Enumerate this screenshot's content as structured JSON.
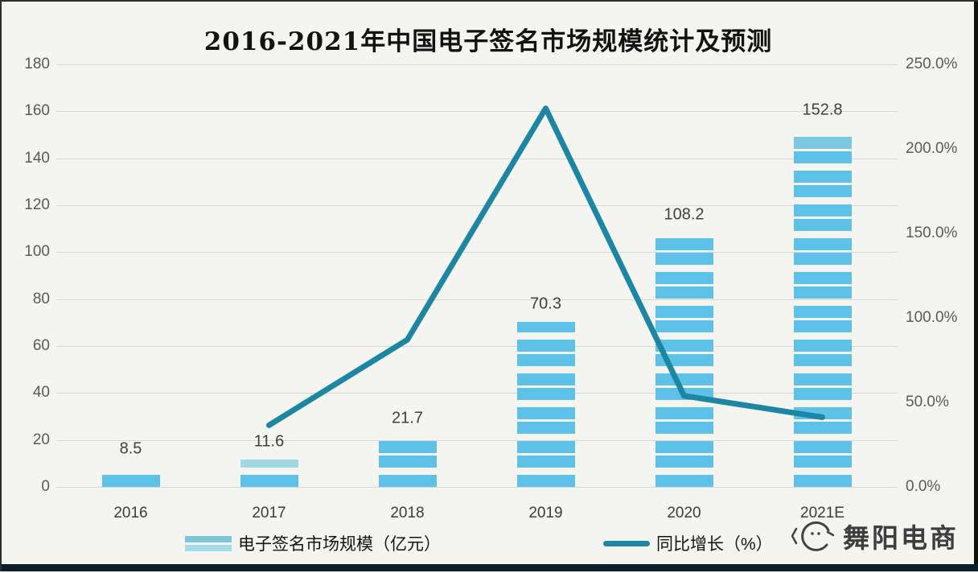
{
  "title": "2016-2021年中国电子签名市场规模统计及预测",
  "watermark": {
    "text": "舞阳电商"
  },
  "legend": {
    "items": [
      {
        "label": "电子签名市场规模（亿元）",
        "swatch": "striped-bar"
      },
      {
        "label": "同比增长（%）",
        "swatch": "line"
      }
    ]
  },
  "colors": {
    "background": "#f4f4f1",
    "gridline": "#d7d7d5",
    "bar": "#5ec1e7",
    "line": "#1d87a3",
    "axis_text": "#5a5a5a",
    "bottom_strip": "#0a1f2b"
  },
  "chart_data": {
    "type": "bar",
    "title": "2016-2021年中国电子签名市场规模统计及预测",
    "categories": [
      "2016",
      "2017",
      "2018",
      "2019",
      "2020",
      "2021E"
    ],
    "series": [
      {
        "name": "电子签名市场规模（亿元）",
        "type": "bar",
        "axis": "left",
        "color": "#5ec1e7",
        "values": [
          8.5,
          11.6,
          21.7,
          70.3,
          108.2,
          152.8
        ],
        "labels": [
          "8.5",
          "11.6",
          "21.7",
          "70.3",
          "108.2",
          "152.8"
        ],
        "cap_colors": [
          null,
          "#9dd7e1",
          null,
          null,
          null,
          "#7cc8e2"
        ]
      },
      {
        "name": "同比增长（%）",
        "type": "line",
        "axis": "right",
        "color": "#1d87a3",
        "values": [
          null,
          36.5,
          87.1,
          224.0,
          53.9,
          41.2
        ]
      }
    ],
    "left_axis": {
      "ticks": [
        0,
        20,
        40,
        60,
        80,
        100,
        120,
        140,
        160,
        180
      ],
      "min": 0,
      "max": 180
    },
    "right_axis": {
      "tick_labels": [
        "0.0%",
        "50.0%",
        "100.0%",
        "150.0%",
        "200.0%",
        "250.0%"
      ],
      "tick_values": [
        0,
        50,
        100,
        150,
        200,
        250
      ],
      "min": 0,
      "max": 250
    },
    "grid": true,
    "legend_position": "bottom"
  }
}
